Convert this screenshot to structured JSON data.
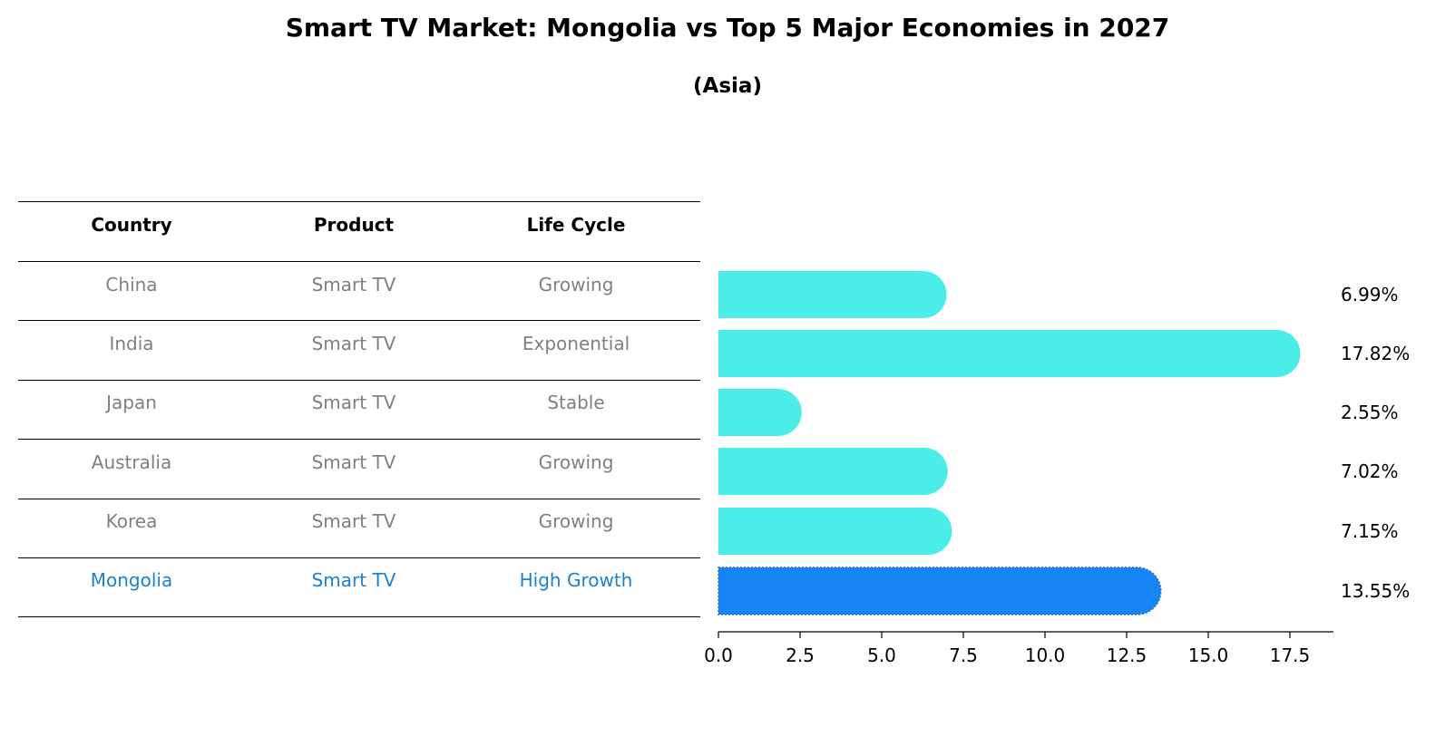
{
  "title": "Smart TV Market: Mongolia vs Top 5 Major Economies in 2027",
  "subtitle": "(Asia)",
  "colors": {
    "bar": "#4BEDE8",
    "highlight": "#1785F5",
    "highlight_text": "#1A82D0",
    "muted_text": "#808080"
  },
  "table": {
    "headers": [
      "Country",
      "Product",
      "Life Cycle"
    ],
    "rows": [
      {
        "country": "China",
        "product": "Smart TV",
        "life_cycle": "Growing",
        "highlight": false
      },
      {
        "country": "India",
        "product": "Smart TV",
        "life_cycle": "Exponential",
        "highlight": false
      },
      {
        "country": "Japan",
        "product": "Smart TV",
        "life_cycle": "Stable",
        "highlight": false
      },
      {
        "country": "Australia",
        "product": "Smart TV",
        "life_cycle": "Growing",
        "highlight": false
      },
      {
        "country": "Korea",
        "product": "Smart TV",
        "life_cycle": "Growing",
        "highlight": false
      },
      {
        "country": "Mongolia",
        "product": "Smart TV",
        "life_cycle": "High Growth",
        "highlight": true
      }
    ]
  },
  "chart_data": {
    "type": "bar",
    "orientation": "horizontal",
    "title": "Smart TV Market: Mongolia vs Top 5 Major Economies in 2027",
    "subtitle": "(Asia)",
    "categories": [
      "China",
      "India",
      "Japan",
      "Australia",
      "Korea",
      "Mongolia"
    ],
    "values": [
      6.99,
      17.82,
      2.55,
      7.02,
      7.15,
      13.55
    ],
    "value_labels": [
      "6.99%",
      "17.82%",
      "2.55%",
      "7.02%",
      "7.15%",
      "13.55%"
    ],
    "highlight": "Mongolia",
    "xlim": [
      0,
      18.8
    ],
    "xticks": [
      0,
      2.5,
      5,
      7.5,
      10,
      12.5,
      15,
      17.5
    ],
    "xtick_labels": [
      "0.0",
      "2.5",
      "5.0",
      "7.5",
      "10.0",
      "12.5",
      "15.0",
      "17.5"
    ],
    "xlabel": "",
    "ylabel": "",
    "grid": false
  }
}
